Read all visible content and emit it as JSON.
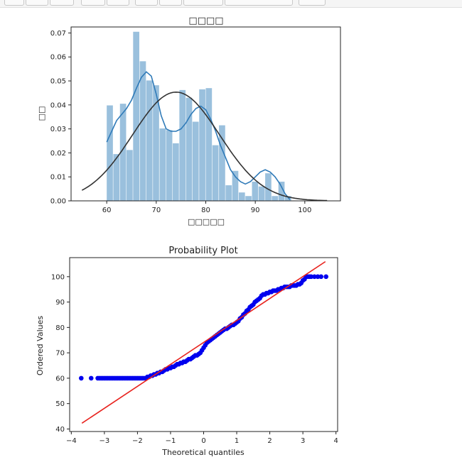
{
  "toolbar": {
    "buttons": [
      "",
      "",
      "",
      "",
      "",
      "",
      "",
      "",
      "",
      ""
    ]
  },
  "charts": {
    "hist": {
      "type": "bar",
      "title": "□□□□",
      "xlabel": "□□□□□",
      "ylabel": "□□",
      "xlim": [
        52.8,
        107.2
      ],
      "ylim": [
        0,
        0.0725
      ],
      "xticks": [
        60,
        70,
        80,
        90,
        100
      ],
      "yticks": [
        0.0,
        0.01,
        0.02,
        0.03,
        0.04,
        0.05,
        0.06,
        0.07
      ],
      "bin_width": 1.333,
      "bins": [
        {
          "x": 60.0,
          "y": 0.0398
        },
        {
          "x": 61.33,
          "y": 0.0195
        },
        {
          "x": 62.67,
          "y": 0.0405
        },
        {
          "x": 64.0,
          "y": 0.0212
        },
        {
          "x": 65.33,
          "y": 0.0705
        },
        {
          "x": 66.67,
          "y": 0.0582
        },
        {
          "x": 68.0,
          "y": 0.0502
        },
        {
          "x": 69.33,
          "y": 0.0482
        },
        {
          "x": 70.67,
          "y": 0.0302
        },
        {
          "x": 72.0,
          "y": 0.0295
        },
        {
          "x": 73.33,
          "y": 0.024
        },
        {
          "x": 74.67,
          "y": 0.0462
        },
        {
          "x": 76.0,
          "y": 0.043
        },
        {
          "x": 77.33,
          "y": 0.033
        },
        {
          "x": 78.67,
          "y": 0.0465
        },
        {
          "x": 80.0,
          "y": 0.047
        },
        {
          "x": 81.33,
          "y": 0.0232
        },
        {
          "x": 82.67,
          "y": 0.0315
        },
        {
          "x": 84.0,
          "y": 0.0065
        },
        {
          "x": 85.33,
          "y": 0.0125
        },
        {
          "x": 86.67,
          "y": 0.0035
        },
        {
          "x": 88.0,
          "y": 0.002
        },
        {
          "x": 89.33,
          "y": 0.008
        },
        {
          "x": 90.67,
          "y": 0.006
        },
        {
          "x": 92.0,
          "y": 0.0115
        },
        {
          "x": 93.33,
          "y": 0.002
        },
        {
          "x": 94.67,
          "y": 0.008
        },
        {
          "x": 96.0,
          "y": 0.002
        }
      ],
      "kde": [
        [
          60.0,
          0.0245
        ],
        [
          61.0,
          0.029
        ],
        [
          62.0,
          0.0335
        ],
        [
          63.0,
          0.036
        ],
        [
          64.0,
          0.0385
        ],
        [
          65.0,
          0.042
        ],
        [
          66.0,
          0.047
        ],
        [
          67.0,
          0.0515
        ],
        [
          68.0,
          0.0538
        ],
        [
          69.0,
          0.052
        ],
        [
          70.0,
          0.0445
        ],
        [
          71.0,
          0.0355
        ],
        [
          72.0,
          0.03
        ],
        [
          73.0,
          0.029
        ],
        [
          74.0,
          0.029
        ],
        [
          75.0,
          0.03
        ],
        [
          76.0,
          0.0325
        ],
        [
          77.0,
          0.036
        ],
        [
          78.0,
          0.0385
        ],
        [
          79.0,
          0.0395
        ],
        [
          80.0,
          0.038
        ],
        [
          81.0,
          0.034
        ],
        [
          82.0,
          0.029
        ],
        [
          83.0,
          0.023
        ],
        [
          84.0,
          0.018
        ],
        [
          85.0,
          0.013
        ],
        [
          86.0,
          0.01
        ],
        [
          87.0,
          0.008
        ],
        [
          88.0,
          0.007
        ],
        [
          89.0,
          0.008
        ],
        [
          90.0,
          0.01
        ],
        [
          91.0,
          0.012
        ],
        [
          92.0,
          0.013
        ],
        [
          93.0,
          0.012
        ],
        [
          94.0,
          0.01
        ],
        [
          95.0,
          0.007
        ],
        [
          96.0,
          0.003
        ],
        [
          97.0,
          0.0005
        ]
      ],
      "normal_fit": {
        "mean": 74.0,
        "std": 8.8
      }
    },
    "prob": {
      "type": "scatter",
      "title": "Probability Plot",
      "xlabel": "Theoretical quantiles",
      "ylabel": "Ordered Values",
      "xlim": [
        -4.05,
        4.05
      ],
      "ylim": [
        39.0,
        107.5
      ],
      "xticks": [
        -4,
        -3,
        -2,
        -1,
        0,
        1,
        2,
        3,
        4
      ],
      "yticks": [
        40,
        50,
        60,
        70,
        80,
        90,
        100
      ],
      "fit_line": {
        "slope": 8.65,
        "intercept": 74.1,
        "x_range": [
          -3.68,
          3.68
        ]
      }
    }
  }
}
